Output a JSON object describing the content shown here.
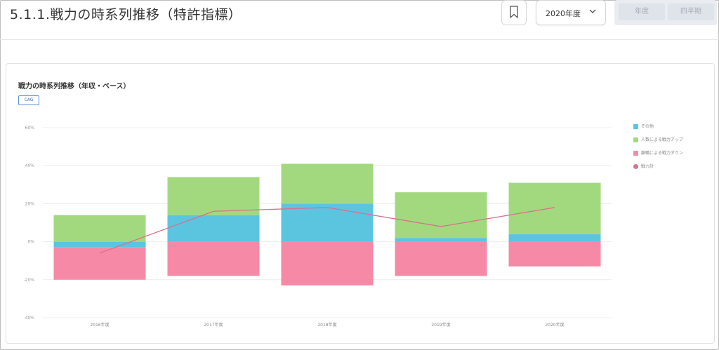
{
  "header": {
    "title": "5.1.1.戦力の時系列推移（特許指標）",
    "year_select_value": "2020年度",
    "period_buttons": [
      "年度",
      "四半期"
    ]
  },
  "chart_data": {
    "type": "bar",
    "title": "戦力の時系列推移（年収・ベース）",
    "badge": "CAG",
    "categories": [
      "2016年度",
      "2017年度",
      "2018年度",
      "2019年度",
      "2020年度"
    ],
    "series": [
      {
        "name": "その他",
        "kind": "bar",
        "color": "#5bc5e0",
        "values": [
          -3,
          14,
          20,
          2,
          4
        ]
      },
      {
        "name": "人数による戦力アップ",
        "kind": "bar",
        "color": "#a3d97e",
        "values": [
          14,
          20,
          21,
          24,
          27
        ]
      },
      {
        "name": "離職による戦力ダウン",
        "kind": "bar",
        "color": "#f68aa6",
        "values": [
          -17,
          -18,
          -23,
          -18,
          -13
        ]
      },
      {
        "name": "戦力計",
        "kind": "line",
        "color": "#d9708e",
        "values": [
          -6,
          16,
          18,
          8,
          18
        ]
      }
    ],
    "yticks": [
      60,
      40,
      20,
      0,
      -20,
      -40
    ],
    "ytick_labels": [
      "60%",
      "40%",
      "20%",
      "0%",
      "-20%",
      "-40%"
    ],
    "ylim": [
      -40,
      60
    ],
    "grid": true,
    "legend_position": "right"
  }
}
